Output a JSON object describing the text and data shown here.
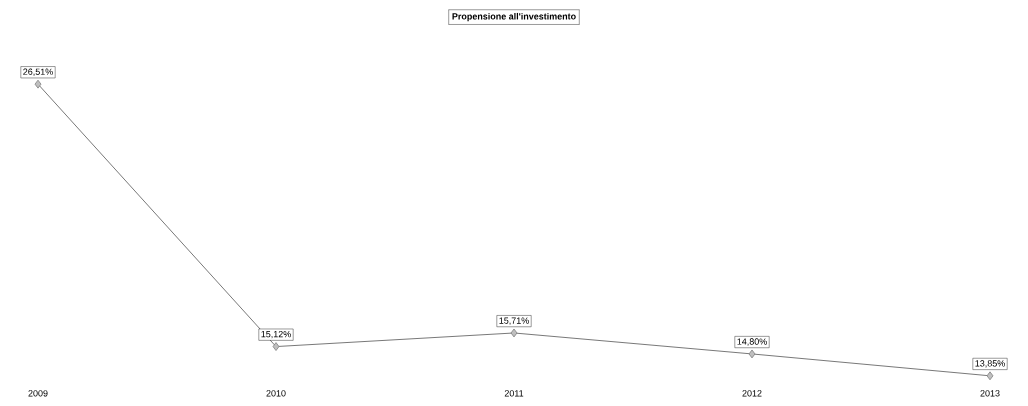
{
  "chart_data": {
    "type": "line",
    "title": "Propensione all'investimento",
    "categories": [
      "2009",
      "2010",
      "2011",
      "2012",
      "2013"
    ],
    "values": [
      26.51,
      15.12,
      15.71,
      14.8,
      13.85
    ],
    "value_labels": [
      "26,51%",
      "15,12%",
      "15,71%",
      "14,80%",
      "13,85%"
    ],
    "color": "#555555",
    "marker": "diamond",
    "line_style": "solid"
  }
}
